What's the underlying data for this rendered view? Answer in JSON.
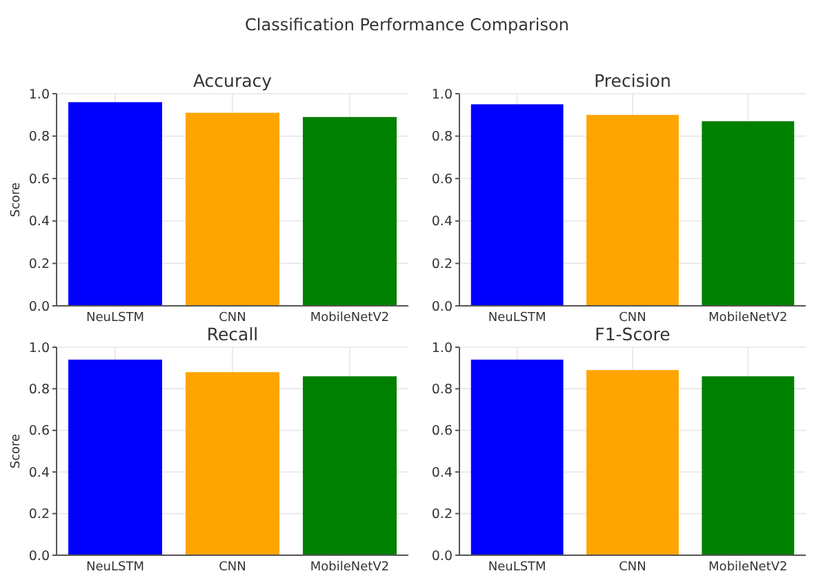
{
  "chart_data": [
    {
      "type": "bar",
      "title": "Accuracy",
      "ylabel": "Score",
      "annotations": [
        "Classification Performance Comparison"
      ],
      "categories": [
        "NeuLSTM",
        "CNN",
        "MobileNetV2"
      ],
      "values": [
        0.96,
        0.91,
        0.89
      ],
      "colors": [
        "#0000ff",
        "#ffa500",
        "#008000"
      ],
      "ylim": [
        0,
        1
      ],
      "yticks": [
        {
          "value": 0,
          "label": "0.0"
        },
        {
          "value": 0.2,
          "label": "0.2"
        },
        {
          "value": 0.4,
          "label": "0.4"
        },
        {
          "value": 0.6,
          "label": "0.6"
        },
        {
          "value": 0.8,
          "label": "0.8"
        },
        {
          "value": 1,
          "label": "1.0"
        }
      ],
      "grid": true
    },
    {
      "type": "bar",
      "title": "Precision",
      "categories": [
        "NeuLSTM",
        "CNN",
        "MobileNetV2"
      ],
      "values": [
        0.95,
        0.9,
        0.87
      ],
      "colors": [
        "#0000ff",
        "#ffa500",
        "#008000"
      ],
      "ylim": [
        0,
        1
      ],
      "yticks": [
        {
          "value": 0,
          "label": "0.0"
        },
        {
          "value": 0.2,
          "label": "0.2"
        },
        {
          "value": 0.4,
          "label": "0.4"
        },
        {
          "value": 0.6,
          "label": "0.6"
        },
        {
          "value": 0.8,
          "label": "0.8"
        },
        {
          "value": 1,
          "label": "1.0"
        }
      ],
      "grid": true
    },
    {
      "type": "bar",
      "title": "Recall",
      "ylabel": "Score",
      "categories": [
        "NeuLSTM",
        "CNN",
        "MobileNetV2"
      ],
      "values": [
        0.94,
        0.88,
        0.86
      ],
      "colors": [
        "#0000ff",
        "#ffa500",
        "#008000"
      ],
      "ylim": [
        0,
        1
      ],
      "yticks": [
        {
          "value": 0,
          "label": "0.0"
        },
        {
          "value": 0.2,
          "label": "0.2"
        },
        {
          "value": 0.4,
          "label": "0.4"
        },
        {
          "value": 0.6,
          "label": "0.6"
        },
        {
          "value": 0.8,
          "label": "0.8"
        },
        {
          "value": 1,
          "label": "1.0"
        }
      ],
      "grid": true
    },
    {
      "type": "bar",
      "title": "F1-Score",
      "categories": [
        "NeuLSTM",
        "CNN",
        "MobileNetV2"
      ],
      "values": [
        0.94,
        0.89,
        0.86
      ],
      "colors": [
        "#0000ff",
        "#ffa500",
        "#008000"
      ],
      "ylim": [
        0,
        1
      ],
      "yticks": [
        {
          "value": 0,
          "label": "0.0"
        },
        {
          "value": 0.2,
          "label": "0.2"
        },
        {
          "value": 0.4,
          "label": "0.4"
        },
        {
          "value": 0.6,
          "label": "0.6"
        },
        {
          "value": 0.8,
          "label": "0.8"
        },
        {
          "value": 1,
          "label": "1.0"
        }
      ],
      "grid": true
    }
  ]
}
